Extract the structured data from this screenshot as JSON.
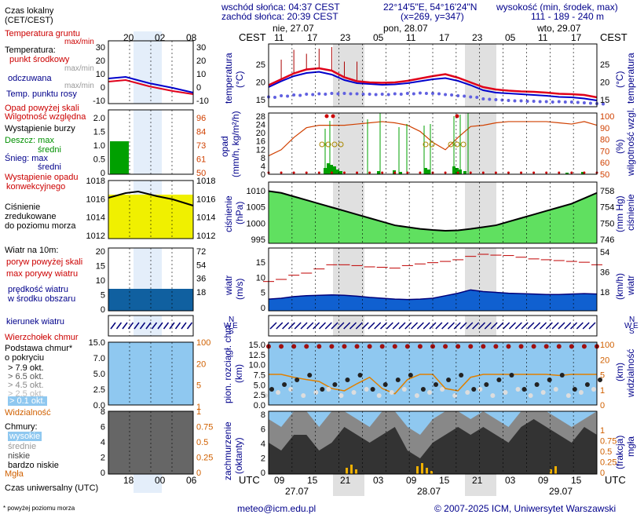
{
  "header": {
    "sunrise": "wschód słońca: 04:37 CEST",
    "sunset": "zachód słońca: 20:39 CEST",
    "coords": "22°14'5\"E, 54°16'24\"N",
    "grid": "(x=269, y=347)",
    "height_title": "wysokość (min, środek, max)",
    "height_values": "111 - 189 - 240 m"
  },
  "legend": {
    "local_time": "Czas lokalny",
    "local_time2": "(CET/CEST)",
    "soil_temp": "Temperatura gruntu",
    "soil_temp_sub": "max/min",
    "temperature": "Temperatura:",
    "mid_point": "punkt środkowy",
    "max_min": "max/min",
    "felt": "odczuwana",
    "felt_sub": "max/min",
    "dew_point": "Temp. punktu rosy",
    "precip_over": "Opad powyżej skali",
    "humidity": "Wilgotność względna",
    "storm": "Wystąpienie burzy",
    "rain_max": "Deszcz: max",
    "rain_mean": "średni",
    "snow_max": "Śnieg:  max",
    "snow_mean": "średni",
    "conv": "Wystąpienie opadu",
    "conv2": "konwekcyjnego",
    "pressure": "Ciśnienie",
    "pressure2": "zredukowane",
    "pressure3": "do poziomu morza",
    "wind_head": "Wiatr na 10m:",
    "gust_over": "poryw powyżej skali",
    "gust_max": "max porywy wiatru",
    "wind_speed": "prędkość wiatru",
    "wind_speed2": "w środku obszaru",
    "wind_dir": "kierunek wiatru",
    "cloud_top": "Wierzchołek chmur",
    "cloud_base": "Podstawa chmur*",
    "cloud_base2": "o pokryciu",
    "okt79": "> 7.9 okt.",
    "okt65": "> 6.5 okt.",
    "okt45": "> 4.5 okt.",
    "okt25": "> 2.5 okt.",
    "okt01": "> 0.1 okt.",
    "visibility": "Widzialność",
    "clouds": "Chmury:",
    "high": "wysokie",
    "middle": "średnie",
    "low": "niskie",
    "very_low": "bardzo niskie",
    "fog": "Mgła",
    "utc_label": "Czas uniwersalny (UTC)",
    "footnote": "* powyżej poziomu morza"
  },
  "axes": {
    "cest": "CEST",
    "utc": "UTC",
    "days_top": [
      "nie, 27.07",
      "pon, 28.07",
      "wto, 29.07"
    ],
    "hours_top": [
      "11",
      "17",
      "23",
      "05",
      "11",
      "17",
      "23",
      "05",
      "11",
      "17"
    ],
    "hours_bottom": [
      "09",
      "15",
      "21",
      "03",
      "09",
      "15",
      "21",
      "03",
      "09",
      "15"
    ],
    "days_bottom": [
      "27.07",
      "28.07",
      "29.07"
    ],
    "mini_top_hours": [
      "20",
      "02",
      "08"
    ],
    "mini_bottom_hours": [
      "18",
      "00",
      "06"
    ],
    "temp_label": "temperatura",
    "temp_unit": "(°C)",
    "precip_label": "opad",
    "precip_unit": "(mm/h, kg/m²/h)",
    "humid_label": "wilgotność wzgl.",
    "humid_unit": "(%)",
    "press_label": "ciśnienie",
    "press_unit": "(hPa)",
    "press_unit_r": "(mm Hg)",
    "wind_label": "wiatr",
    "wind_unit": "(m/s)",
    "wind_unit_r": "(km/h)",
    "cloud_label": "pion. rozciągł. chm.",
    "cloud_unit": "(km)",
    "vis_label": "widzialność",
    "vis_unit": "(km)",
    "cover_label": "zachmurzenie",
    "cover_unit": "(oktanty)",
    "fog_label": "mgła",
    "fog_unit": "(frakcja)",
    "temp_ticks": [
      "15",
      "20",
      "25"
    ],
    "precip_ticks": [
      "0",
      "4",
      "8",
      "12",
      "16",
      "20",
      "24",
      "28"
    ],
    "humid_ticks": [
      "50",
      "60",
      "70",
      "80",
      "90",
      "100"
    ],
    "press_ticks": [
      "995",
      "1000",
      "1005",
      "1010"
    ],
    "press_ticks_r": [
      "746",
      "750",
      "754",
      "758"
    ],
    "wind_ticks": [
      "0",
      "5",
      "10",
      "15"
    ],
    "wind_ticks_r": [
      "18",
      "36",
      "54"
    ],
    "cloud_ticks": [
      "0.0",
      "2.5",
      "5.0",
      "7.5",
      "10.0",
      "12.5",
      "15.0"
    ],
    "vis_ticks": [
      "0",
      "1",
      "5",
      "20",
      "100"
    ],
    "cover_ticks": [
      "0",
      "2",
      "4",
      "6",
      "8"
    ],
    "fog_ticks": [
      "0",
      "0.25",
      "0.5",
      "0.75",
      "1"
    ],
    "mini_temp_ticks": [
      "-10",
      "0",
      "10",
      "20",
      "30"
    ],
    "mini_precip_ticks": [
      "0",
      "0.5",
      "1.0",
      "1.5",
      "2.0"
    ],
    "mini_humid_ticks": [
      "50",
      "61",
      "73",
      "84",
      "96"
    ],
    "mini_press_ticks": [
      "1012",
      "1014",
      "1016",
      "1018"
    ],
    "mini_wind_ticks": [
      "0",
      "5",
      "10",
      "15",
      "20"
    ],
    "mini_wind_ticks_r": [
      "18",
      "36",
      "54",
      "72"
    ],
    "mini_cloud_ticks": [
      "0.0",
      "2.5",
      "5.0",
      "7.0",
      "15.0"
    ],
    "mini_vis_ticks": [
      "1",
      "5",
      "20",
      "100"
    ],
    "mini_cover_ticks": [
      "0",
      "2",
      "4",
      "6",
      "8"
    ],
    "mini_fog_ticks": [
      "0",
      "0.25",
      "0.5",
      "0.75",
      "1"
    ],
    "wind_dir_letters": [
      "N",
      "W",
      "E",
      "S"
    ]
  },
  "footer": {
    "email": "meteo@icm.edu.pl",
    "copyright": "© 2007-2025 ICM, Uniwersytet Warszawski"
  },
  "colors": {
    "temp": "#e0001a",
    "felt": "#0000cc",
    "dew": "#6060e0",
    "humidity": "#d04000",
    "rain": "#00a000",
    "pressure_dark": "#006400",
    "pressure_light": "#60e060",
    "wind_fill": "#1060d0",
    "gust": "#c00000",
    "sky": "#8fc8f0",
    "night": "#e0e0e0"
  },
  "chart_data": [
    {
      "type": "line",
      "name": "temperature",
      "x_hours_utc_from": 6,
      "temp": [
        19.5,
        21,
        22.5,
        23.5,
        23.8,
        23.2,
        21.5,
        20.5,
        20.2,
        20.1,
        20.2,
        20.6,
        21.2,
        21.8,
        22.3,
        21.4,
        20.2,
        19.0,
        18.4,
        18.1,
        17.9,
        17.8,
        17.6,
        17.3,
        17.2,
        17.0,
        16.4
      ],
      "felt": [
        19,
        20.5,
        21.8,
        22.6,
        22.9,
        22.2,
        20.8,
        20,
        19.8,
        19.6,
        19.7,
        20,
        20.5,
        21.0,
        21.3,
        20.6,
        19.5,
        18.2,
        17.6,
        17.4,
        17.2,
        17.0,
        16.8,
        16.5,
        16.4,
        16.1,
        15.6
      ],
      "dew": [
        16.5,
        16.8,
        17.0,
        17.2,
        17.3,
        17.4,
        17.4,
        17.3,
        17.2,
        17.2,
        17.3,
        17.4,
        17.5,
        17.4,
        17.1,
        16.8,
        16.5,
        16.0,
        15.8,
        15.6,
        15.5,
        15.4,
        15.3,
        15.3,
        15.2,
        15.0,
        14.8
      ],
      "ylim": [
        14,
        30
      ]
    },
    {
      "type": "bar",
      "name": "precipitation",
      "humidity": [
        65,
        70,
        80,
        88,
        90,
        90,
        90,
        91,
        92,
        93,
        92,
        90,
        85,
        76,
        70,
        80,
        89,
        90,
        92,
        93,
        93,
        93,
        93,
        92,
        91,
        93,
        90
      ],
      "ylim": [
        0,
        30
      ]
    },
    {
      "type": "area",
      "name": "pressure",
      "values": [
        1009.5,
        1009,
        1008,
        1007,
        1006,
        1005,
        1004,
        1003,
        1002,
        1001,
        1000,
        999.5,
        999,
        998.7,
        998.5,
        998.6,
        999,
        999.5,
        1000,
        1001,
        1002,
        1003,
        1004,
        1005,
        1006,
        1007.5,
        1009
      ],
      "ylim": [
        995,
        1012
      ]
    },
    {
      "type": "area",
      "name": "wind",
      "speed": [
        2.8,
        3.0,
        3.4,
        3.6,
        3.7,
        3.8,
        3.7,
        3.5,
        3.2,
        3.0,
        2.8,
        2.7,
        2.8,
        3.0,
        3.6,
        4.2,
        5.0,
        4.6,
        4.4,
        4.2,
        4.1,
        4.0,
        3.9,
        3.9,
        4.0,
        4.1,
        4.0
      ],
      "gust": [
        7,
        7.5,
        8.5,
        9,
        10,
        11,
        11,
        10.8,
        10.5,
        10.4,
        10.2,
        10.8,
        11.2,
        11.5,
        11.8,
        12.2,
        13,
        13.5,
        13.3,
        13.2,
        12.8,
        12.4,
        12.2,
        12.0,
        11.8,
        11.6,
        11.0
      ],
      "ylim": [
        0,
        15
      ]
    },
    {
      "type": "scatter",
      "name": "cloud_top",
      "values": [
        14,
        14,
        14,
        14,
        14,
        14,
        14,
        14,
        14,
        14,
        14,
        14,
        14,
        14,
        14,
        14,
        14,
        14,
        14,
        14,
        14,
        14,
        14,
        14,
        14,
        14,
        14
      ],
      "visibility_km": [
        20,
        20,
        15,
        12,
        10,
        5,
        4,
        8,
        15,
        5,
        3,
        12,
        20,
        20,
        5,
        4,
        15,
        20,
        20,
        20,
        20,
        20,
        20,
        18,
        20,
        20,
        20
      ],
      "ylim": [
        0,
        15
      ]
    },
    {
      "type": "area",
      "name": "cloud_cover",
      "low": [
        4,
        3,
        5,
        5,
        3,
        4,
        6,
        5,
        4,
        5,
        6,
        3,
        2,
        4,
        5,
        6,
        5,
        6,
        5,
        4,
        6,
        7,
        6,
        5,
        4,
        6,
        5
      ],
      "high": [
        7,
        6,
        8,
        8,
        6,
        8,
        8,
        7,
        6,
        8,
        8,
        6,
        5,
        7,
        8,
        8,
        7,
        8,
        7,
        6,
        8,
        8,
        8,
        7,
        6,
        7,
        8
      ],
      "ylim": [
        0,
        8
      ]
    }
  ]
}
